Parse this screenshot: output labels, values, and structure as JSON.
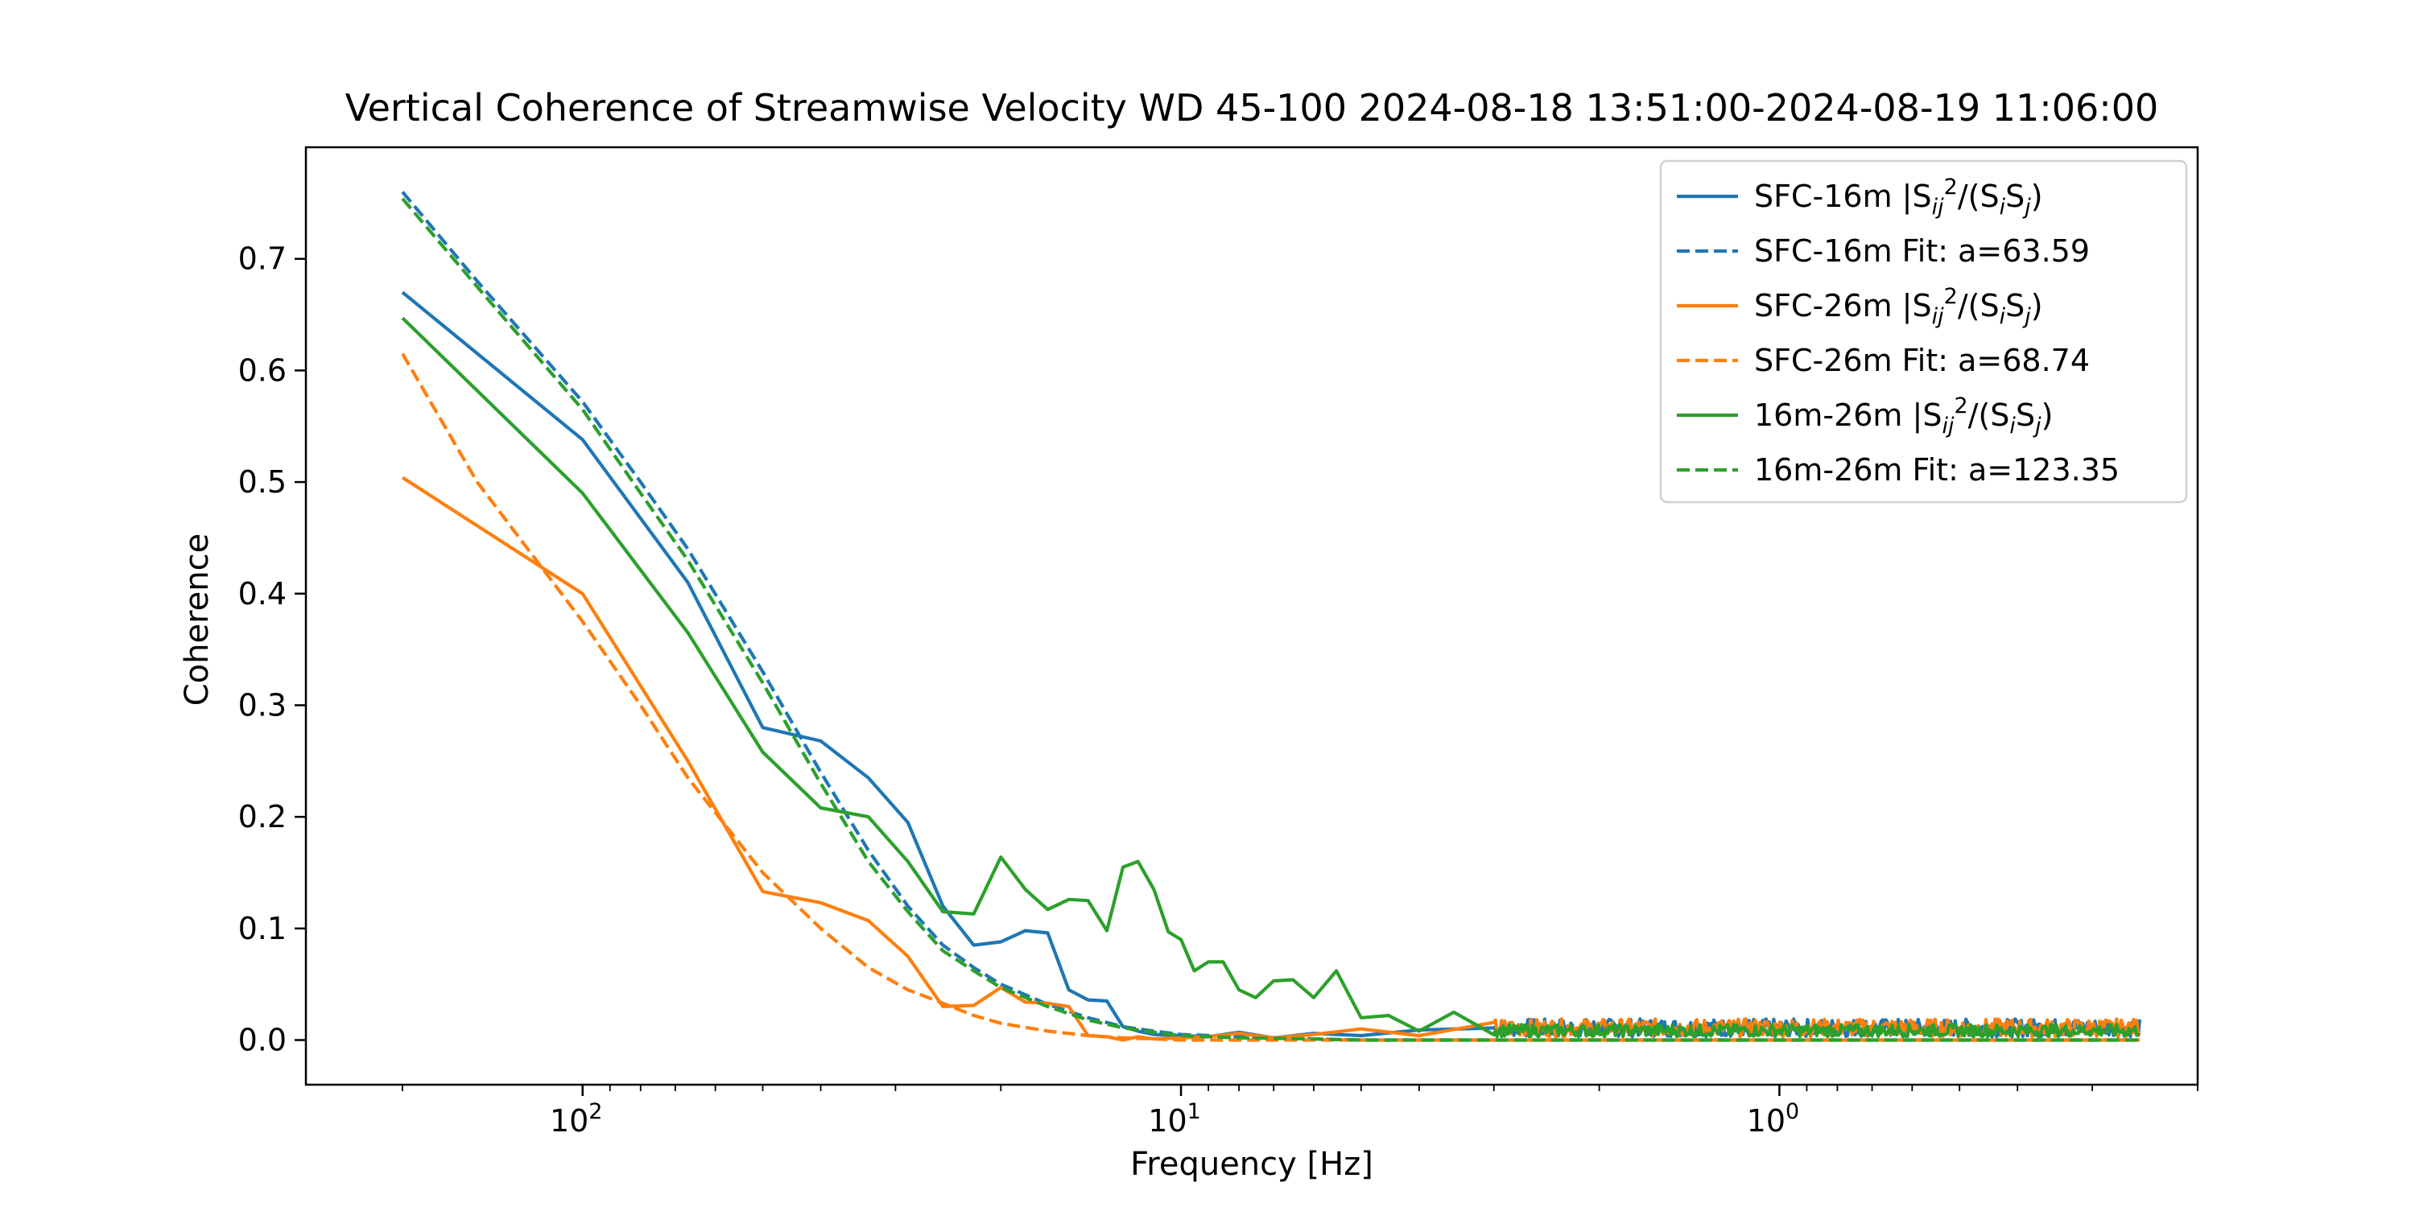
{
  "chart_data": {
    "type": "line",
    "title": "Vertical Coherence of Streamwise Velocity WD 45-100 2024-08-18 13:51:00-2024-08-19 11:06:00",
    "xlabel": "Frequency [Hz]",
    "ylabel": "Coherence",
    "xscale": "log",
    "x_direction": "reversed",
    "xlim": [
      290,
      0.2
    ],
    "ylim": [
      -0.04,
      0.8
    ],
    "grid": false,
    "legend_position": "top-right",
    "x_ticks": [
      {
        "value": 100,
        "label": "10",
        "exp": "2"
      },
      {
        "value": 10,
        "label": "10",
        "exp": "1"
      },
      {
        "value": 1,
        "label": "10",
        "exp": "0"
      }
    ],
    "y_ticks": [
      {
        "value": 0.0,
        "label": "0.0"
      },
      {
        "value": 0.1,
        "label": "0.1"
      },
      {
        "value": 0.2,
        "label": "0.2"
      },
      {
        "value": 0.3,
        "label": "0.3"
      },
      {
        "value": 0.4,
        "label": "0.4"
      },
      {
        "value": 0.5,
        "label": "0.5"
      },
      {
        "value": 0.6,
        "label": "0.6"
      },
      {
        "value": 0.7,
        "label": "0.7"
      }
    ],
    "series": [
      {
        "name_main": "SFC-16m |S",
        "name_sub": "ij",
        "name_sup": "2",
        "name_tail": "/(S",
        "name_sub2": "i",
        "name_mid": "S",
        "name_sub3": "j",
        "name_end": ")",
        "color": "#1f77b4",
        "style": "solid",
        "x": [
          200,
          100,
          66.7,
          50,
          40,
          33.3,
          28.6,
          25,
          22.2,
          20,
          18.2,
          16.7,
          15.4,
          14.3,
          13.3,
          12.5,
          11.8,
          11.1,
          10,
          9,
          8,
          7,
          6,
          5,
          4,
          3,
          2,
          1.5,
          1,
          0.7,
          0.5,
          0.4,
          0.3,
          0.25
        ],
        "y": [
          0.67,
          0.538,
          0.41,
          0.28,
          0.268,
          0.235,
          0.195,
          0.12,
          0.085,
          0.088,
          0.098,
          0.096,
          0.045,
          0.036,
          0.035,
          0.012,
          0.008,
          0.005,
          0.004,
          0.003,
          0.007,
          0.002,
          0.006,
          0.004,
          0.009,
          0.006,
          0.008,
          0.01,
          0.009,
          0.012,
          0.011,
          0.013,
          0.028,
          0.01
        ]
      },
      {
        "name_main": "SFC-16m Fit: a=63.59",
        "color": "#1f77b4",
        "style": "dashed",
        "fit_a": 63.59,
        "fit_c0": 0.3,
        "fit_c1": 0.045,
        "fit_x": [
          200,
          150,
          100,
          80,
          66.7,
          50,
          40,
          33.3,
          28.6,
          25,
          22.2,
          20,
          16.7,
          14.3,
          12.5,
          11.1,
          10,
          8,
          6,
          5,
          4,
          3,
          2,
          1.5,
          1,
          0.7,
          0.5,
          0.35,
          0.25
        ],
        "fit_y": [
          0.76,
          0.68,
          0.572,
          0.5,
          0.44,
          0.33,
          0.24,
          0.17,
          0.12,
          0.085,
          0.065,
          0.05,
          0.032,
          0.02,
          0.012,
          0.008,
          0.005,
          0.003,
          0.001,
          0.0,
          0.0,
          0.0,
          0.0,
          0.0,
          0.0,
          0.0,
          0.0,
          0.0,
          0.0
        ]
      },
      {
        "name_main": "SFC-26m |S",
        "name_sub": "ij",
        "name_sup": "2",
        "name_tail": "/(S",
        "name_sub2": "i",
        "name_mid": "S",
        "name_sub3": "j",
        "name_end": ")",
        "color": "#ff7f0e",
        "style": "solid",
        "x": [
          200,
          100,
          66.7,
          50,
          40,
          33.3,
          28.6,
          25,
          22.2,
          20,
          18.2,
          16.7,
          15.4,
          14.3,
          13.3,
          12.5,
          11.8,
          11.1,
          10,
          9,
          8,
          7,
          6,
          5,
          4,
          3,
          2,
          1.5,
          1,
          0.7,
          0.5,
          0.4,
          0.3,
          0.25
        ],
        "y": [
          0.504,
          0.4,
          0.25,
          0.133,
          0.123,
          0.107,
          0.075,
          0.03,
          0.031,
          0.047,
          0.034,
          0.033,
          0.03,
          0.004,
          0.003,
          0.0,
          0.003,
          0.001,
          0.002,
          0.003,
          0.006,
          0.002,
          0.005,
          0.01,
          0.004,
          0.008,
          0.007,
          0.012,
          0.009,
          0.011,
          0.01,
          0.012,
          0.01,
          0.012
        ]
      },
      {
        "name_main": "SFC-26m Fit: a=68.74",
        "color": "#ff7f0e",
        "style": "dashed",
        "fit_x": [
          200,
          150,
          100,
          80,
          66.7,
          50,
          40,
          33.3,
          28.6,
          25,
          22.2,
          20,
          16.7,
          14.3,
          12.5,
          11.1,
          10,
          8,
          6,
          5,
          4,
          3,
          2,
          1.5,
          1,
          0.7,
          0.5,
          0.35,
          0.25
        ],
        "fit_y": [
          0.615,
          0.5,
          0.375,
          0.3,
          0.235,
          0.15,
          0.1,
          0.065,
          0.045,
          0.033,
          0.022,
          0.015,
          0.008,
          0.004,
          0.002,
          0.001,
          0.0,
          0.0,
          0.0,
          0.0,
          0.0,
          0.0,
          0.0,
          0.0,
          0.0,
          0.0,
          0.0,
          0.0,
          0.0
        ]
      },
      {
        "name_main": "16m-26m |S",
        "name_sub": "ij",
        "name_sup": "2",
        "name_tail": "/(S",
        "name_sub2": "i",
        "name_mid": "S",
        "name_sub3": "j",
        "name_end": ")",
        "color": "#2ca02c",
        "style": "solid",
        "x": [
          200,
          100,
          66.7,
          50,
          40,
          33.3,
          28.6,
          25,
          22.2,
          20,
          18.2,
          16.7,
          15.4,
          14.3,
          13.3,
          12.5,
          11.8,
          11.1,
          10.5,
          10,
          9.5,
          9,
          8.5,
          8,
          7.5,
          7,
          6.5,
          6,
          5.5,
          5,
          4.5,
          4,
          3.5,
          3,
          2,
          1.5,
          1,
          0.7,
          0.5,
          0.4,
          0.3,
          0.25
        ],
        "y": [
          0.647,
          0.49,
          0.365,
          0.258,
          0.208,
          0.2,
          0.16,
          0.115,
          0.113,
          0.164,
          0.135,
          0.117,
          0.126,
          0.125,
          0.098,
          0.155,
          0.16,
          0.135,
          0.097,
          0.09,
          0.062,
          0.07,
          0.07,
          0.045,
          0.038,
          0.053,
          0.054,
          0.038,
          0.062,
          0.02,
          0.022,
          0.008,
          0.025,
          0.012,
          0.01,
          0.005,
          0.006,
          0.004,
          0.006,
          0.005,
          0.004,
          0.006
        ]
      },
      {
        "name_main": "16m-26m Fit: a=123.35",
        "color": "#2ca02c",
        "style": "dashed",
        "fit_x": [
          200,
          150,
          100,
          80,
          66.7,
          50,
          40,
          33.3,
          28.6,
          25,
          22.2,
          20,
          16.7,
          14.3,
          12.5,
          11.1,
          10,
          8,
          6,
          5,
          4,
          3,
          2,
          1.5,
          1,
          0.7,
          0.5,
          0.35,
          0.25
        ],
        "fit_y": [
          0.754,
          0.675,
          0.565,
          0.49,
          0.43,
          0.32,
          0.23,
          0.16,
          0.115,
          0.08,
          0.062,
          0.047,
          0.03,
          0.018,
          0.011,
          0.007,
          0.004,
          0.002,
          0.001,
          0.0,
          0.0,
          0.0,
          0.0,
          0.0,
          0.0,
          0.0,
          0.0,
          0.0,
          0.0
        ]
      }
    ]
  }
}
